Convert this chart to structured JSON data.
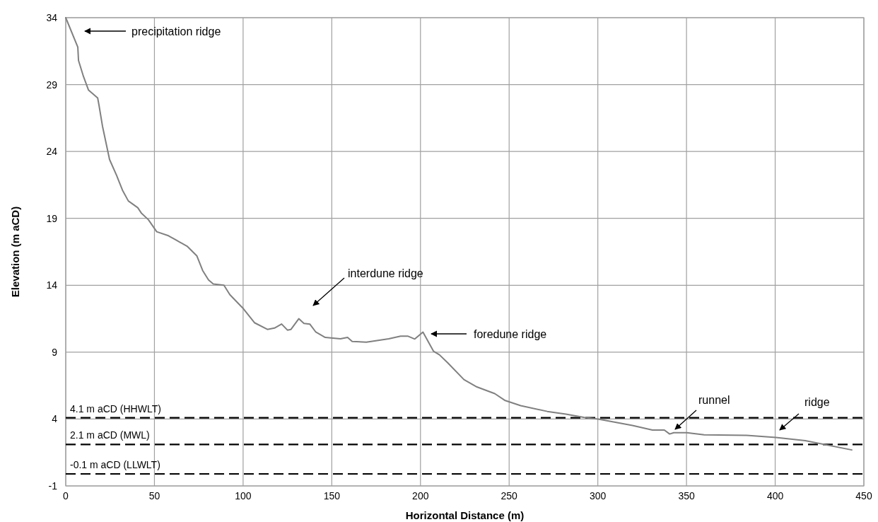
{
  "chart_data": {
    "type": "line",
    "xlabel": "Horizontal Distance (m)",
    "ylabel": "Elevation (m aCD)",
    "xlim": [
      0,
      450
    ],
    "xticks": [
      0,
      50,
      100,
      150,
      200,
      250,
      300,
      350,
      400,
      450
    ],
    "ylim": [
      -1,
      34
    ],
    "yticks": [
      -1,
      4,
      9,
      14,
      19,
      24,
      29,
      34
    ],
    "grid": true,
    "marker": "none",
    "line_style": "solid",
    "series": [
      {
        "color": "#808080",
        "x": [
          0,
          6.8,
          7.2,
          10,
          12.8,
          18,
          18.7,
          20.7,
          24.7,
          28.7,
          32,
          35.3,
          40.6,
          42.6,
          46.6,
          51.3,
          57.9,
          61.9,
          68.6,
          73.9,
          77.2,
          80.5,
          83.2,
          89.2,
          92.5,
          99.8,
          106.4,
          113.7,
          117.7,
          121.7,
          125,
          127,
          131.4,
          134.3,
          137.6,
          141,
          146.3,
          154.9,
          158.9,
          161.5,
          169.5,
          182.1,
          188.8,
          192.8,
          196.8,
          201.4,
          207.4,
          210.7,
          215.4,
          224.5,
          231.8,
          241.9,
          247.5,
          256.5,
          271.5,
          282,
          292.5,
          300.8,
          319.5,
          330.8,
          337.5,
          340.5,
          342.8,
          350.2,
          360,
          384,
          400.5,
          417,
          443.2
        ],
        "values": [
          34.0,
          31.8,
          30.8,
          29.6,
          28.6,
          28.0,
          27.5,
          25.9,
          23.4,
          22.2,
          21.1,
          20.3,
          19.8,
          19.4,
          18.9,
          18.0,
          17.7,
          17.4,
          16.9,
          16.2,
          15.1,
          14.4,
          14.1,
          14.0,
          13.3,
          12.3,
          11.2,
          10.7,
          10.8,
          11.1,
          10.65,
          10.7,
          11.5,
          11.15,
          11.1,
          10.5,
          10.1,
          10.0,
          10.1,
          9.8,
          9.75,
          10.0,
          10.2,
          10.2,
          9.98,
          10.5,
          9.06,
          8.8,
          8.2,
          6.95,
          6.4,
          5.9,
          5.4,
          5.0,
          4.57,
          4.37,
          4.11,
          3.98,
          3.52,
          3.18,
          3.18,
          2.88,
          2.98,
          2.98,
          2.82,
          2.78,
          2.62,
          2.38,
          1.69
        ]
      }
    ],
    "ref_lines": [
      {
        "axis": "y",
        "value": 4.1,
        "label": "4.1 m aCD (HHWLT)",
        "color": "#000000",
        "line_style": "dashed"
      },
      {
        "axis": "y",
        "value": 2.1,
        "label": "2.1 m aCD (MWL)",
        "color": "#000000",
        "line_style": "dashed"
      },
      {
        "axis": "y",
        "value": -0.1,
        "label": "-0.1 m aCD (LLWLT)",
        "color": "#000000",
        "line_style": "dashed"
      }
    ],
    "annotations": [
      "precipitation ridge",
      "interdune ridge",
      "foredune ridge",
      "runnel",
      "ridge"
    ]
  }
}
